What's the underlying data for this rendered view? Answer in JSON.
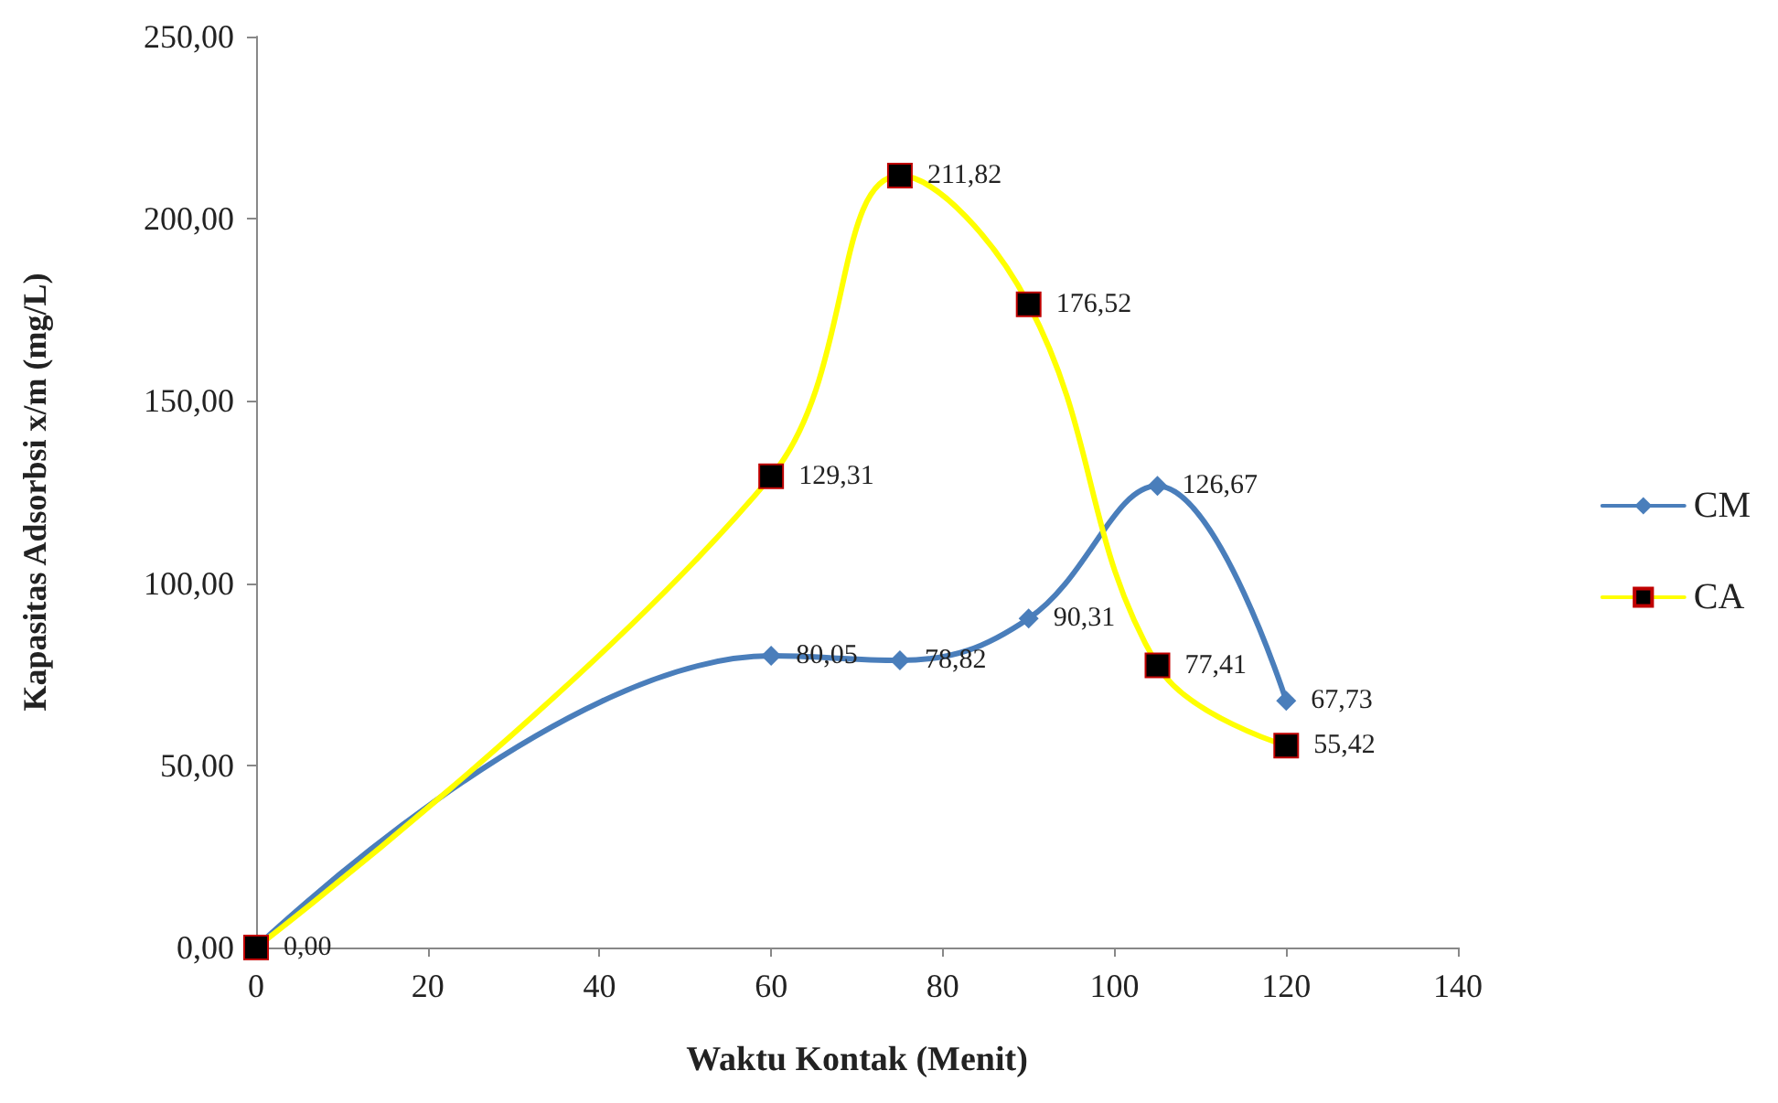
{
  "chart_data": {
    "type": "line",
    "xlabel": "Waktu Kontak (Menit)",
    "ylabel": "Kapasitas Adsorbsi x/m (mg/L)",
    "x": [
      0,
      60,
      75,
      90,
      105,
      120
    ],
    "series": [
      {
        "name": "CM",
        "color": "#4a7ebb",
        "marker": "diamond",
        "values": [
          0,
          80.05,
          78.82,
          90.31,
          126.67,
          67.73
        ],
        "value_labels": [
          null,
          "80,05",
          "78,82",
          "90,31",
          "126,67",
          "67,73"
        ]
      },
      {
        "name": "CA",
        "color": "#ffff00",
        "marker": "square",
        "values": [
          0,
          129.31,
          211.82,
          176.52,
          77.41,
          55.42
        ],
        "value_labels": [
          "0,00",
          "129,31",
          "211,82",
          "176,52",
          "77,41",
          "55,42"
        ]
      }
    ],
    "xlim": [
      0,
      140
    ],
    "xticks": [
      0,
      20,
      40,
      60,
      80,
      100,
      120,
      140
    ],
    "ylim": [
      0,
      250
    ],
    "yticks": [
      {
        "value": 0,
        "label": "0,00"
      },
      {
        "value": 50,
        "label": "50,00"
      },
      {
        "value": 100,
        "label": "100,00"
      },
      {
        "value": 150,
        "label": "150,00"
      },
      {
        "value": 200,
        "label": "200,00"
      },
      {
        "value": 250,
        "label": "250,00"
      }
    ],
    "grid": false,
    "legend": "right",
    "line_style": "solid"
  }
}
